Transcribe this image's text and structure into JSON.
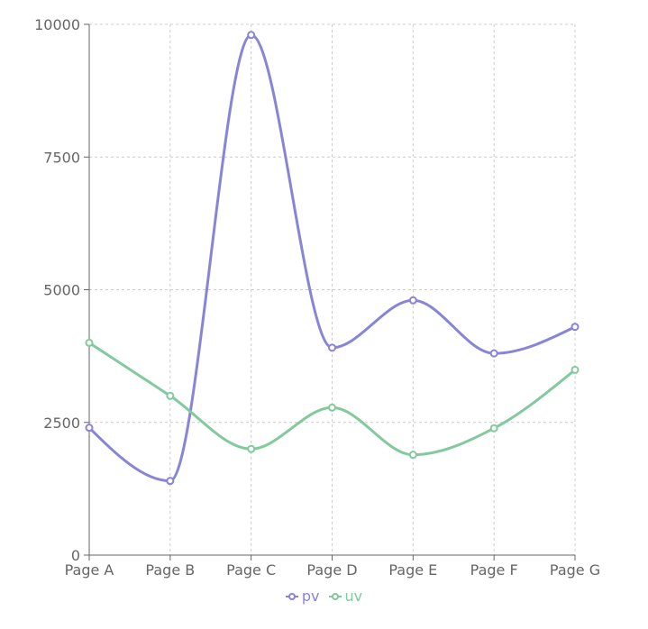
{
  "chart_data": {
    "type": "line",
    "curve": "smooth",
    "categories": [
      "Page A",
      "Page B",
      "Page C",
      "Page D",
      "Page E",
      "Page F",
      "Page G"
    ],
    "series": [
      {
        "name": "pv",
        "color": "#8884d8",
        "values": [
          2400,
          1398,
          9800,
          3908,
          4800,
          3800,
          4300
        ]
      },
      {
        "name": "uv",
        "color": "#82ca9d",
        "values": [
          4000,
          3000,
          2000,
          2780,
          1890,
          2390,
          3490
        ]
      }
    ],
    "y_ticks": [
      "0",
      "2500",
      "5000",
      "7500",
      "10000"
    ],
    "ylim": [
      0,
      10000
    ],
    "grid": true,
    "grid_style": "dashed",
    "legend_position": "bottom-center"
  }
}
